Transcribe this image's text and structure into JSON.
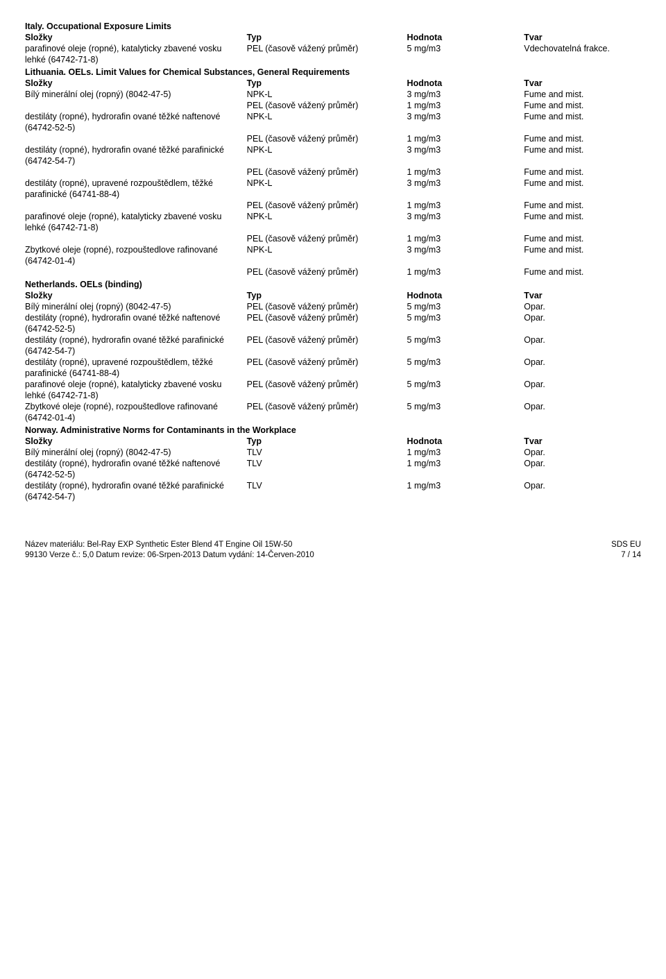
{
  "sections": {
    "italy": {
      "title": "Italy. Occupational Exposure Limits",
      "headers": {
        "comp": "Složky",
        "typ": "Typ",
        "hod": "Hodnota",
        "tvar": "Tvar"
      },
      "rows": [
        {
          "comp": "parafinové oleje (ropné), katalyticky zbavené vosku lehké (64742-71-8)",
          "typ": "PEL (časově vážený průměr)",
          "hod": "5 mg/m3",
          "tvar": "Vdechovatelná frakce."
        }
      ]
    },
    "lithuania": {
      "title": "Lithuania. OELs. Limit Values for Chemical Substances, General Requirements",
      "headers": {
        "comp": "Složky",
        "typ": "Typ",
        "hod": "Hodnota",
        "tvar": "Tvar"
      },
      "rows": [
        {
          "comp": "Bílý minerální olej (ropný) (8042-47-5)",
          "typ": "NPK-L",
          "hod": "3 mg/m3",
          "tvar": "Fume and mist."
        },
        {
          "comp": "",
          "typ": "PEL (časově vážený průměr)",
          "hod": "1 mg/m3",
          "tvar": "Fume and mist."
        },
        {
          "comp": "destiláty (ropné), hydrorafin ované těžké naftenové (64742-52-5)",
          "typ": "NPK-L",
          "hod": "3 mg/m3",
          "tvar": "Fume and mist."
        },
        {
          "comp": "",
          "typ": "PEL (časově vážený průměr)",
          "hod": "1 mg/m3",
          "tvar": "Fume and mist."
        },
        {
          "comp": "destiláty (ropné), hydrorafin ované těžké parafinické (64742-54-7)",
          "typ": "NPK-L",
          "hod": "3 mg/m3",
          "tvar": "Fume and mist."
        },
        {
          "comp": "",
          "typ": "PEL (časově vážený průměr)",
          "hod": "1 mg/m3",
          "tvar": "Fume and mist."
        },
        {
          "comp": "destiláty (ropné), upravené rozpouštědlem, těžké parafinické (64741-88-4)",
          "typ": "NPK-L",
          "hod": "3 mg/m3",
          "tvar": "Fume and mist."
        },
        {
          "comp": "",
          "typ": "PEL (časově vážený průměr)",
          "hod": "1 mg/m3",
          "tvar": "Fume and mist."
        },
        {
          "comp": "parafinové oleje (ropné), katalyticky zbavené vosku lehké (64742-71-8)",
          "typ": "NPK-L",
          "hod": "3 mg/m3",
          "tvar": "Fume and mist."
        },
        {
          "comp": "",
          "typ": "PEL (časově vážený průměr)",
          "hod": "1 mg/m3",
          "tvar": "Fume and mist."
        },
        {
          "comp": "Zbytkové oleje (ropné), rozpouštedlove rafinované (64742-01-4)",
          "typ": "NPK-L",
          "hod": "3 mg/m3",
          "tvar": "Fume and mist."
        },
        {
          "comp": "",
          "typ": "PEL (časově vážený průměr)",
          "hod": "1 mg/m3",
          "tvar": "Fume and mist."
        }
      ]
    },
    "netherlands": {
      "title": "Netherlands. OELs (binding)",
      "headers": {
        "comp": "Složky",
        "typ": "Typ",
        "hod": "Hodnota",
        "tvar": "Tvar"
      },
      "rows": [
        {
          "comp": "Bílý minerální olej (ropný) (8042-47-5)",
          "typ": "PEL (časově vážený průměr)",
          "hod": "5 mg/m3",
          "tvar": "Opar."
        },
        {
          "comp": "destiláty (ropné), hydrorafin ované těžké naftenové (64742-52-5)",
          "typ": "PEL (časově vážený průměr)",
          "hod": "5 mg/m3",
          "tvar": "Opar."
        },
        {
          "comp": "destiláty (ropné), hydrorafin ované těžké parafinické (64742-54-7)",
          "typ": "PEL (časově vážený průměr)",
          "hod": "5 mg/m3",
          "tvar": "Opar."
        },
        {
          "comp": "destiláty (ropné), upravené rozpouštědlem, těžké parafinické (64741-88-4)",
          "typ": "PEL (časově vážený průměr)",
          "hod": "5 mg/m3",
          "tvar": "Opar."
        },
        {
          "comp": "parafinové oleje (ropné), katalyticky zbavené vosku lehké (64742-71-8)",
          "typ": "PEL (časově vážený průměr)",
          "hod": "5 mg/m3",
          "tvar": "Opar."
        },
        {
          "comp": "Zbytkové oleje (ropné), rozpouštedlove rafinované (64742-01-4)",
          "typ": "PEL (časově vážený průměr)",
          "hod": "5 mg/m3",
          "tvar": "Opar."
        }
      ]
    },
    "norway": {
      "title": "Norway. Administrative Norms for Contaminants in the Workplace",
      "headers": {
        "comp": "Složky",
        "typ": "Typ",
        "hod": "Hodnota",
        "tvar": "Tvar"
      },
      "rows": [
        {
          "comp": "Bílý minerální olej (ropný) (8042-47-5)",
          "typ": "TLV",
          "hod": "1 mg/m3",
          "tvar": "Opar."
        },
        {
          "comp": "destiláty (ropné), hydrorafin ované těžké naftenové (64742-52-5)",
          "typ": "TLV",
          "hod": "1 mg/m3",
          "tvar": "Opar."
        },
        {
          "comp": "destiláty (ropné), hydrorafin ované těžké parafinické (64742-54-7)",
          "typ": "TLV",
          "hod": "1 mg/m3",
          "tvar": "Opar."
        }
      ]
    }
  },
  "footer": {
    "line1": "Název materiálu: Bel-Ray EXP Synthetic Ester Blend 4T Engine Oil 15W-50",
    "line2": "99130   Verze č.: 5,0   Datum revize: 06-Srpen-2013   Datum vydání: 14-Červen-2010",
    "right1": "SDS EU",
    "right2": "7 / 14"
  }
}
